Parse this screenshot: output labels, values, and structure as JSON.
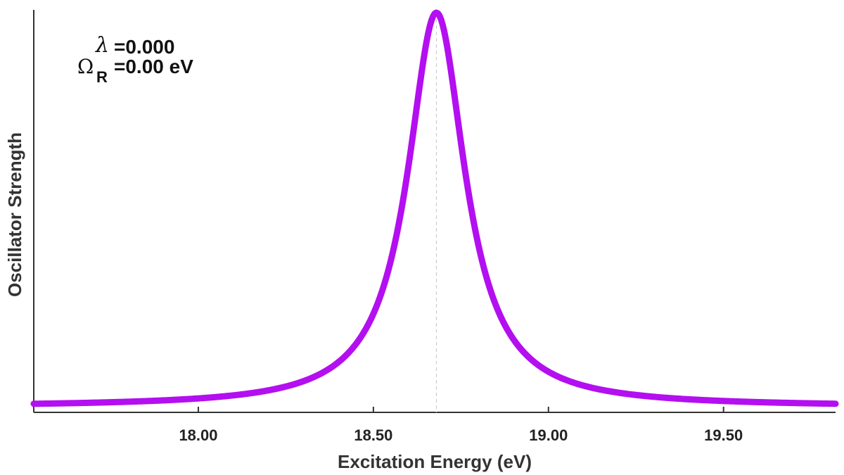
{
  "chart_data": {
    "type": "line",
    "xlabel": "Excitation Energy (eV)",
    "ylabel": "Oscillator Strength",
    "xlim": [
      17.53,
      19.82
    ],
    "ylim": [
      0,
      1.0
    ],
    "xticks": [
      18.0,
      18.5,
      19.0,
      19.5
    ],
    "xtick_labels": [
      "18.00",
      "18.50",
      "19.00",
      "19.50"
    ],
    "grid": false,
    "series": [
      {
        "name": "spectrum",
        "shape": "lorentzian",
        "center": 18.68,
        "hwhm": 0.1,
        "peak": 1.0,
        "color": "#b30ff0"
      }
    ],
    "reference_line": {
      "x": 18.68,
      "style": "dashed",
      "color": "#cccccc"
    },
    "annotation": {
      "lambda_symbol": "λ",
      "lambda_text": "=0.000",
      "omega_symbol": "Ω",
      "omega_subscript": "R",
      "omega_text": "=0.00 eV"
    }
  }
}
